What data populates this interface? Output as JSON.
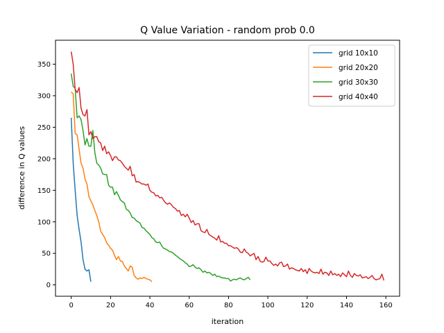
{
  "chart_data": {
    "type": "line",
    "title": "Q Value Variation - random prob 0.0",
    "xlabel": "iteration",
    "ylabel": "difference in Q values",
    "xlim": [
      -8,
      167
    ],
    "ylim": [
      -18,
      388
    ],
    "xticks": [
      0,
      20,
      40,
      60,
      80,
      100,
      120,
      140,
      160
    ],
    "yticks": [
      0,
      50,
      100,
      150,
      200,
      250,
      300,
      350
    ],
    "grid": false,
    "legend_position": "top-right",
    "series": [
      {
        "name": "grid 10x10",
        "color": "#1f77b4",
        "x": [
          0,
          1,
          2,
          3,
          4,
          5,
          6,
          7,
          8,
          9,
          10
        ],
        "y": [
          265,
          193,
          150,
          110,
          88,
          68,
          40,
          25,
          22,
          24,
          5
        ]
      },
      {
        "name": "grid 20x20",
        "color": "#ff7f0e",
        "x": [
          0,
          1,
          2,
          3,
          4,
          5,
          6,
          7,
          8,
          9,
          10,
          11,
          12,
          13,
          14,
          15,
          16,
          17,
          18,
          19,
          20,
          21,
          22,
          23,
          24,
          25,
          26,
          27,
          28,
          29,
          30,
          31,
          32,
          33,
          34,
          35,
          36,
          37,
          38,
          39,
          40,
          41
        ],
        "y": [
          306,
          303,
          240,
          238,
          215,
          193,
          185,
          168,
          160,
          140,
          133,
          127,
          118,
          110,
          100,
          85,
          80,
          75,
          67,
          63,
          58,
          55,
          47,
          40,
          45,
          38,
          37,
          30,
          26,
          22,
          30,
          28,
          15,
          11,
          9,
          11,
          10,
          12,
          10,
          9,
          8,
          5
        ]
      },
      {
        "name": "grid 30x30",
        "color": "#2ca02c",
        "x": [
          0,
          1,
          2,
          3,
          4,
          5,
          6,
          7,
          8,
          9,
          10,
          11,
          12,
          13,
          14,
          15,
          16,
          17,
          18,
          19,
          20,
          21,
          22,
          23,
          24,
          25,
          26,
          27,
          28,
          29,
          30,
          31,
          32,
          33,
          34,
          35,
          36,
          37,
          38,
          39,
          40,
          41,
          42,
          43,
          44,
          45,
          46,
          47,
          48,
          49,
          50,
          51,
          52,
          53,
          54,
          55,
          56,
          57,
          58,
          59,
          60,
          61,
          62,
          63,
          64,
          65,
          66,
          67,
          68,
          69,
          70,
          71,
          72,
          73,
          74,
          75,
          76,
          77,
          78,
          79,
          80,
          81,
          82,
          83,
          84,
          85,
          86,
          87,
          88,
          89,
          90,
          91
        ],
        "y": [
          335,
          315,
          312,
          265,
          268,
          262,
          245,
          222,
          232,
          220,
          220,
          245,
          210,
          193,
          190,
          185,
          176,
          175,
          175,
          158,
          155,
          155,
          143,
          148,
          142,
          135,
          132,
          130,
          120,
          118,
          114,
          107,
          106,
          102,
          100,
          98,
          91,
          90,
          86,
          83,
          80,
          75,
          73,
          68,
          67,
          68,
          62,
          58,
          57,
          55,
          53,
          52,
          50,
          47,
          45,
          42,
          40,
          38,
          35,
          33,
          29,
          30,
          32,
          28,
          26,
          27,
          24,
          20,
          22,
          19,
          20,
          18,
          15,
          17,
          13,
          14,
          12,
          11,
          11,
          10,
          10,
          6,
          8,
          9,
          8,
          10,
          11,
          9,
          8,
          10,
          12,
          8
        ]
      },
      {
        "name": "grid 40x40",
        "color": "#d62728",
        "x": [
          0,
          1,
          2,
          3,
          4,
          5,
          6,
          7,
          8,
          9,
          10,
          11,
          12,
          13,
          14,
          15,
          16,
          17,
          18,
          19,
          20,
          21,
          22,
          23,
          24,
          25,
          26,
          27,
          28,
          29,
          30,
          31,
          32,
          33,
          34,
          35,
          36,
          37,
          38,
          39,
          40,
          41,
          42,
          43,
          44,
          45,
          46,
          47,
          48,
          49,
          50,
          51,
          52,
          53,
          54,
          55,
          56,
          57,
          58,
          59,
          60,
          61,
          62,
          63,
          64,
          65,
          66,
          67,
          68,
          69,
          70,
          71,
          72,
          73,
          74,
          75,
          76,
          77,
          78,
          79,
          80,
          81,
          82,
          83,
          84,
          85,
          86,
          87,
          88,
          89,
          90,
          91,
          92,
          93,
          94,
          95,
          96,
          97,
          98,
          99,
          100,
          101,
          102,
          103,
          104,
          105,
          106,
          107,
          108,
          109,
          110,
          111,
          112,
          113,
          114,
          115,
          116,
          117,
          118,
          119,
          120,
          121,
          122,
          123,
          124,
          125,
          126,
          127,
          128,
          129,
          130,
          131,
          132,
          133,
          134,
          135,
          136,
          137,
          138,
          139,
          140,
          141,
          142,
          143,
          144,
          145,
          146,
          147,
          148,
          149,
          150,
          151,
          152,
          153,
          154,
          155,
          156,
          157,
          158,
          159
        ],
        "y": [
          370,
          350,
          310,
          305,
          313,
          280,
          270,
          268,
          278,
          238,
          243,
          232,
          235,
          235,
          227,
          225,
          213,
          220,
          208,
          211,
          205,
          197,
          203,
          203,
          198,
          197,
          193,
          188,
          185,
          182,
          188,
          173,
          175,
          163,
          164,
          162,
          160,
          160,
          158,
          160,
          150,
          147,
          146,
          141,
          142,
          138,
          139,
          134,
          130,
          128,
          130,
          127,
          123,
          121,
          117,
          118,
          110,
          112,
          108,
          112,
          106,
          99,
          102,
          95,
          97,
          97,
          86,
          84,
          83,
          88,
          80,
          78,
          76,
          74,
          71,
          78,
          68,
          69,
          66,
          66,
          62,
          62,
          60,
          58,
          59,
          57,
          52,
          51,
          57,
          52,
          50,
          46,
          48,
          50,
          40,
          45,
          38,
          36,
          37,
          44,
          38,
          38,
          34,
          31,
          33,
          30,
          35,
          36,
          29,
          30,
          33,
          25,
          27,
          26,
          24,
          23,
          22,
          26,
          21,
          24,
          18,
          26,
          22,
          20,
          19,
          20,
          18,
          25,
          17,
          20,
          19,
          15,
          22,
          16,
          18,
          15,
          17,
          13,
          19,
          16,
          13,
          22,
          15,
          12,
          18,
          15,
          14,
          16,
          11,
          12,
          13,
          10,
          12,
          15,
          10,
          8,
          9,
          10,
          17,
          7
        ]
      }
    ]
  }
}
